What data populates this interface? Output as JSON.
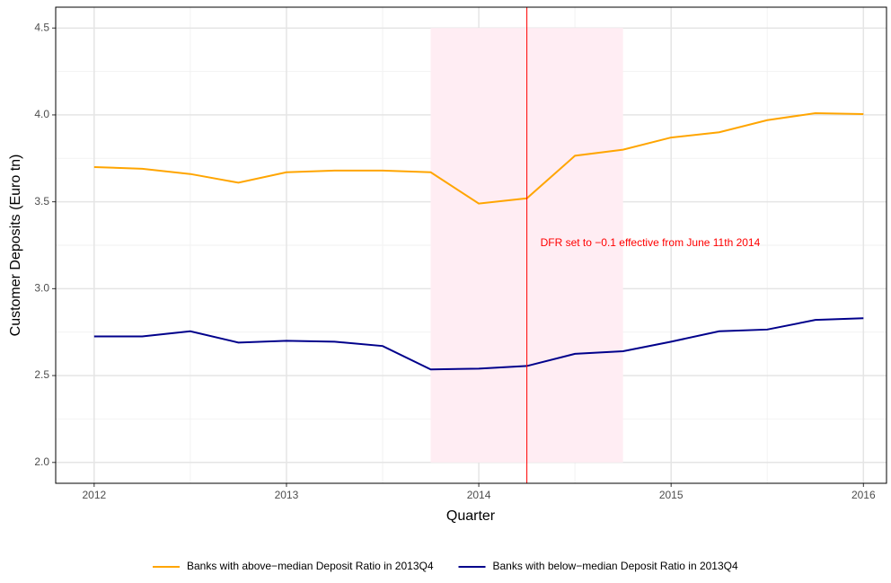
{
  "chart_data": {
    "type": "line",
    "x_label": "Quarter",
    "y_label": "Customer Deposits (Euro tn)",
    "x": [
      2012,
      2012.25,
      2012.5,
      2012.75,
      2013,
      2013.25,
      2013.5,
      2013.75,
      2014,
      2014.25,
      2014.5,
      2014.75,
      2015,
      2015.25,
      2015.5,
      2015.75,
      2016
    ],
    "series": [
      {
        "name": "Banks with above−median Deposit Ratio in 2013Q4",
        "color": "#ffa500",
        "values": [
          3.7,
          3.69,
          3.66,
          3.61,
          3.67,
          3.68,
          3.68,
          3.67,
          3.49,
          3.52,
          3.765,
          3.8,
          3.87,
          3.9,
          3.97,
          4.01,
          4.005
        ]
      },
      {
        "name": "Banks with below−median Deposit Ratio in 2013Q4",
        "color": "#00008b",
        "values": [
          2.725,
          2.725,
          2.755,
          2.69,
          2.7,
          2.695,
          2.67,
          2.535,
          2.54,
          2.555,
          2.625,
          2.64,
          2.695,
          2.755,
          2.765,
          2.82,
          2.83
        ]
      }
    ],
    "xlim": [
      2011.8,
      2016.12
    ],
    "ylim": [
      1.88,
      4.62
    ],
    "xticks": [
      2012,
      2013,
      2014,
      2015,
      2016
    ],
    "yticks": [
      {
        "value": 2,
        "label": "2.0"
      },
      {
        "value": 2.5,
        "label": "2.5"
      },
      {
        "value": 3,
        "label": "3.0"
      },
      {
        "value": 3.5,
        "label": "3.5"
      },
      {
        "value": 4,
        "label": "4.0"
      },
      {
        "value": 4.5,
        "label": "4.5"
      }
    ],
    "grid": true,
    "legend": "bottom",
    "shaded_region": {
      "x": [
        2013.75,
        2014.75
      ],
      "y": [
        2,
        4.5
      ],
      "color": "#ffedf3"
    },
    "vline": {
      "x": 2014.25,
      "color": "#ff0000"
    },
    "annotation": {
      "text": "DFR set to −0.1 effective from June 11th 2014",
      "x": 2014.32,
      "y": 3.26,
      "color": "#ff0000"
    }
  }
}
